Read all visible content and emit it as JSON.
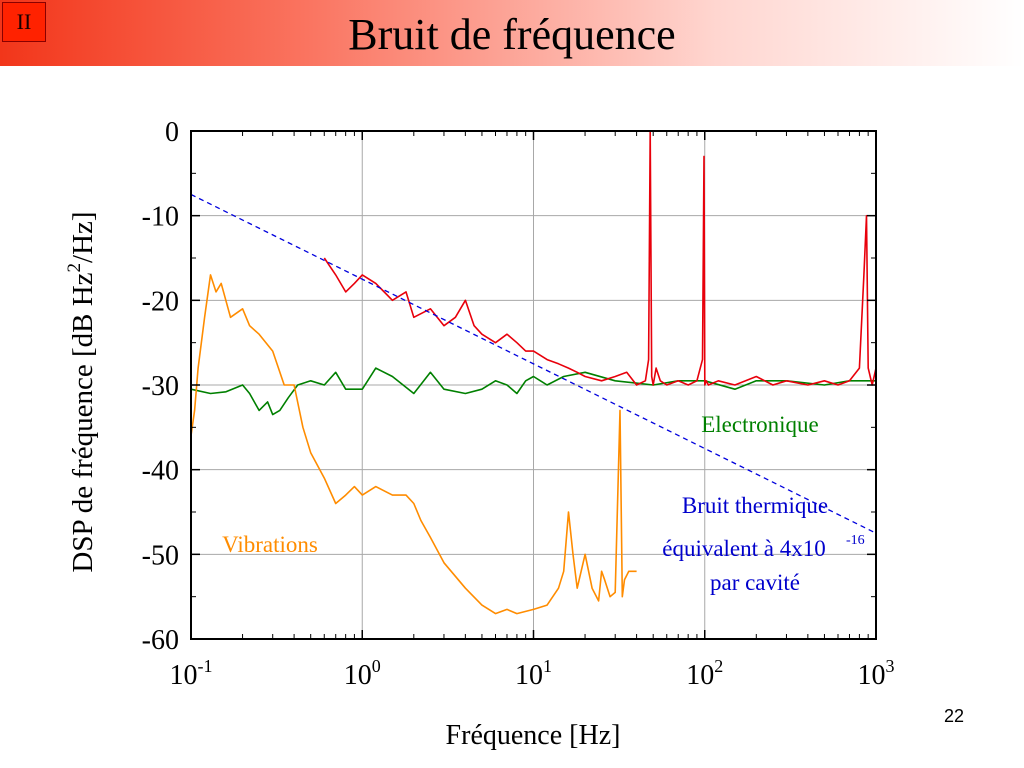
{
  "slide": {
    "section": "II",
    "title": "Bruit de fréquence",
    "page_number": "22"
  },
  "chart_data": {
    "type": "line",
    "title": "",
    "xlabel": "Fréquence   [Hz]",
    "ylabel": "DSP de fréquence   [dB Hz²/Hz]",
    "ylabel_parts": {
      "pre": "DSP de fréquence   [dB Hz",
      "sup": "2",
      "post": "/Hz]"
    },
    "x_scale": "log",
    "xlim": [
      0.1,
      1000
    ],
    "ylim": [
      -60,
      0
    ],
    "grid": true,
    "x_ticks": [
      {
        "value": 0.1,
        "base": "10",
        "exp": "-1"
      },
      {
        "value": 1,
        "base": "10",
        "exp": "0"
      },
      {
        "value": 10,
        "base": "10",
        "exp": "1"
      },
      {
        "value": 100,
        "base": "10",
        "exp": "2"
      },
      {
        "value": 1000,
        "base": "10",
        "exp": "3"
      }
    ],
    "y_ticks": [
      0,
      -10,
      -20,
      -30,
      -40,
      -50,
      -60
    ],
    "annotations": {
      "electronique": "Electronique",
      "vibrations": "Vibrations",
      "thermique_line1": "Bruit thermique",
      "thermique_line2": "équivalent à 4x10",
      "thermique_exp": "-16",
      "thermique_line3": "par cavité"
    },
    "series": [
      {
        "id": "electronique",
        "color": "#008000",
        "x": [
          0.1,
          0.13,
          0.16,
          0.2,
          0.22,
          0.25,
          0.28,
          0.3,
          0.33,
          0.37,
          0.42,
          0.5,
          0.6,
          0.7,
          0.8,
          1,
          1.2,
          1.5,
          2,
          2.5,
          3,
          4,
          5,
          6,
          7,
          8,
          9,
          10,
          12,
          15,
          20,
          30,
          50,
          70,
          100,
          150,
          200,
          300,
          500,
          700,
          1000
        ],
        "y": [
          -30.5,
          -31,
          -30.8,
          -30,
          -31,
          -33,
          -32,
          -33.5,
          -33,
          -31.5,
          -30,
          -29.5,
          -30,
          -28.5,
          -30.5,
          -30.5,
          -28,
          -29,
          -31,
          -28.5,
          -30.5,
          -31,
          -30.5,
          -29.5,
          -30,
          -31,
          -29.5,
          -29,
          -30,
          -29,
          -28.5,
          -29.5,
          -30,
          -29.5,
          -29.5,
          -30.5,
          -29.5,
          -29.5,
          -30,
          -29.5,
          -29.5
        ]
      },
      {
        "id": "vibrations",
        "color": "#ff8c00",
        "x": [
          0.1,
          0.105,
          0.11,
          0.12,
          0.13,
          0.14,
          0.15,
          0.17,
          0.2,
          0.22,
          0.25,
          0.3,
          0.35,
          0.4,
          0.45,
          0.5,
          0.6,
          0.7,
          0.8,
          0.9,
          1,
          1.2,
          1.5,
          1.8,
          2,
          2.2,
          2.5,
          3,
          4,
          5,
          6,
          7,
          8,
          10,
          12,
          14,
          15,
          16,
          17,
          18,
          20,
          22,
          24,
          25,
          26,
          28,
          30,
          32,
          33,
          34,
          36,
          40
        ],
        "y": [
          -36,
          -33,
          -28,
          -22,
          -17,
          -19,
          -18,
          -22,
          -21,
          -23,
          -24,
          -26,
          -30,
          -30,
          -35,
          -38,
          -41,
          -44,
          -43,
          -42,
          -43,
          -42,
          -43,
          -43,
          -44,
          -46,
          -48,
          -51,
          -54,
          -56,
          -57,
          -56.5,
          -57,
          -56.5,
          -56,
          -54,
          -52,
          -45,
          -50,
          -54,
          -50,
          -54,
          -55.5,
          -52,
          -53,
          -55,
          -54.5,
          -33,
          -55,
          -53,
          -52,
          -52
        ]
      },
      {
        "id": "laser",
        "color": "#e8000b",
        "x": [
          0.6,
          0.7,
          0.8,
          0.9,
          1,
          1.2,
          1.5,
          1.8,
          2,
          2.5,
          3,
          3.5,
          4,
          4.5,
          5,
          6,
          7,
          8,
          9,
          10,
          12,
          14,
          16,
          18,
          20,
          25,
          30,
          35,
          40,
          45,
          47,
          48,
          49,
          50,
          52,
          55,
          60,
          70,
          80,
          90,
          97,
          99,
          100,
          102,
          105,
          120,
          150,
          200,
          250,
          300,
          400,
          500,
          600,
          700,
          800,
          850,
          880,
          900,
          950,
          1000
        ],
        "y": [
          -15,
          -17,
          -19,
          -18,
          -17,
          -18,
          -20,
          -19,
          -22,
          -21,
          -23,
          -22,
          -20,
          -23,
          -24,
          -25,
          -24,
          -25,
          -26,
          -26,
          -27,
          -27.5,
          -28,
          -28.5,
          -29,
          -29.5,
          -29,
          -28.5,
          -30,
          -29.5,
          -27,
          0,
          -29,
          -30,
          -28,
          -29.5,
          -30,
          -29.5,
          -30,
          -29.5,
          -27,
          -3,
          -30,
          -29.5,
          -30,
          -29.5,
          -30,
          -29,
          -30,
          -29.5,
          -30,
          -29.5,
          -30,
          -29.5,
          -28,
          -17,
          -10,
          -28,
          -30,
          -28
        ]
      },
      {
        "id": "thermique",
        "color": "#0000dd",
        "x": [
          0.1,
          1000
        ],
        "y": [
          -7.5,
          -47.5
        ]
      }
    ]
  }
}
